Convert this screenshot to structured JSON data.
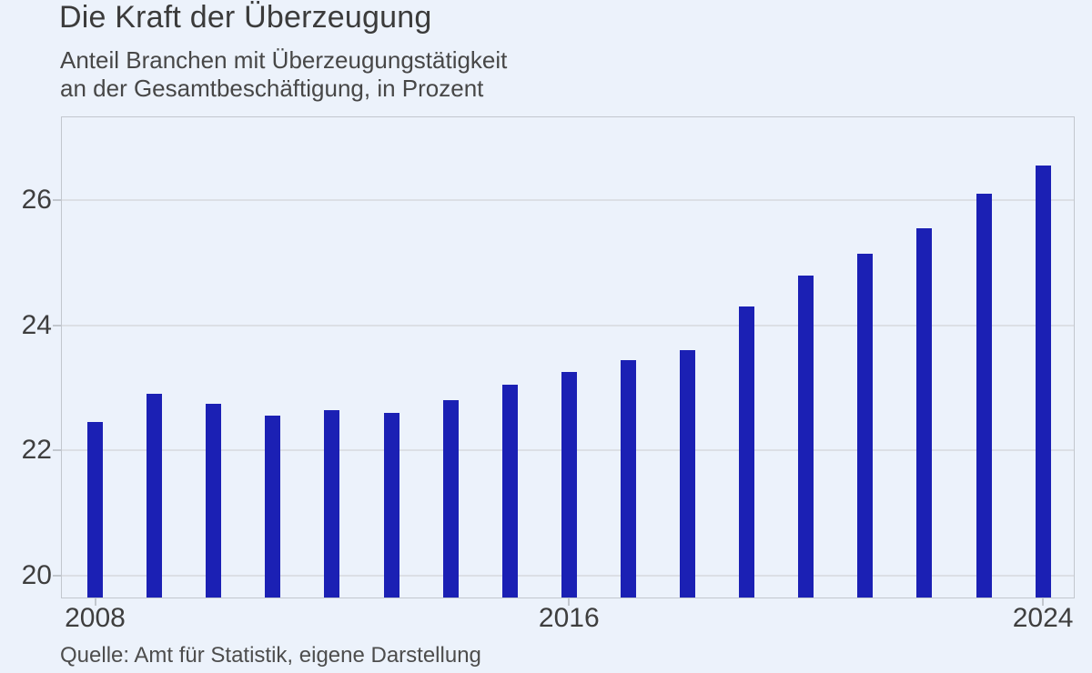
{
  "page": {
    "title": "Die Kraft der Überzeugung",
    "subtitle_line1": "Anteil Branchen mit Überzeugungstätigkeit",
    "subtitle_line2": "an der Gesamtbeschäftigung, in Prozent",
    "source": "Quelle: Amt für Statistik, eigene Darstellung"
  },
  "colors": {
    "background": "#ecf2fb",
    "bar": "#1b20b4",
    "gridline": "#dcdfe5",
    "axis_border": "#c2c7ce",
    "title_text": "#3b3b3b",
    "subtitle_text": "#474747",
    "tick_text": "#3e3e3e",
    "source_text": "#4d4d4d"
  },
  "chart_data": {
    "type": "bar",
    "title": "Die Kraft der Überzeugung",
    "subtitle": "Anteil Branchen mit Überzeugungstätigkeit an der Gesamtbeschäftigung, in Prozent",
    "categories": [
      2008,
      2009,
      2010,
      2011,
      2012,
      2013,
      2014,
      2015,
      2016,
      2017,
      2018,
      2019,
      2020,
      2021,
      2022,
      2023,
      2024
    ],
    "values": [
      22.45,
      22.9,
      22.75,
      22.55,
      22.65,
      22.6,
      22.8,
      23.05,
      23.25,
      23.45,
      23.6,
      24.3,
      24.8,
      25.15,
      25.55,
      26.1,
      26.55
    ],
    "xlabel": "",
    "ylabel": "",
    "ylim": [
      19.64,
      27.34
    ],
    "yticks": [
      20,
      22,
      24,
      26
    ],
    "xticks": [
      2008,
      2016,
      2024
    ],
    "grid": true,
    "legend": false,
    "bar_color": "#1b20b4",
    "source": "Quelle: Amt für Statistik, eigene Darstellung"
  }
}
